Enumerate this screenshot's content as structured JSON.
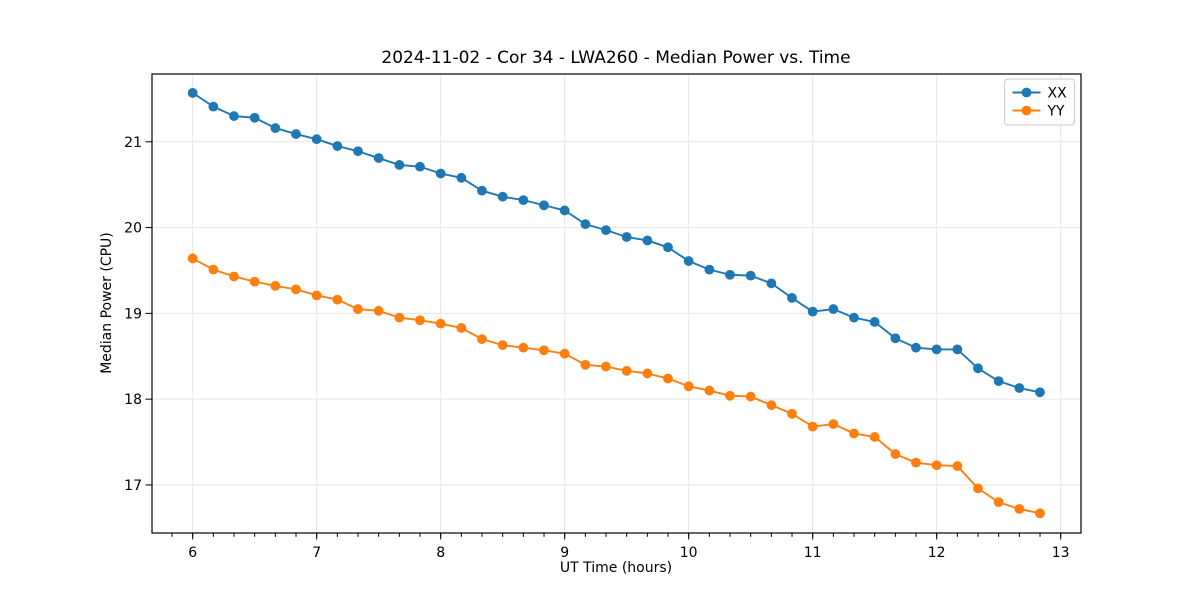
{
  "chart_data": {
    "type": "line",
    "title": "2024-11-02 - Cor 34 - LWA260 - Median Power vs. Time",
    "xlabel": "UT Time (hours)",
    "ylabel": "Median Power (CPU)",
    "xlim": [
      5.672,
      13.164
    ],
    "ylim": [
      16.44,
      21.79
    ],
    "x_ticks": [
      6,
      7,
      8,
      9,
      10,
      11,
      12,
      13
    ],
    "y_ticks": [
      17,
      18,
      19,
      20,
      21
    ],
    "x_minor_step": 0.16667,
    "grid": true,
    "grid_color": "#e6e6e6",
    "spine_color": "#000000",
    "legend_position": "upper right",
    "x": [
      6.0,
      6.167,
      6.333,
      6.5,
      6.667,
      6.833,
      7.0,
      7.167,
      7.333,
      7.5,
      7.667,
      7.833,
      8.0,
      8.167,
      8.333,
      8.5,
      8.667,
      8.833,
      9.0,
      9.167,
      9.333,
      9.5,
      9.667,
      9.833,
      10.0,
      10.167,
      10.333,
      10.5,
      10.667,
      10.833,
      11.0,
      11.167,
      11.333,
      11.5,
      11.667,
      11.833,
      12.0,
      12.167,
      12.333,
      12.5,
      12.667,
      12.833
    ],
    "series": [
      {
        "name": "XX",
        "color": "#1f77b4",
        "values": [
          21.57,
          21.41,
          21.3,
          21.28,
          21.16,
          21.09,
          21.03,
          20.95,
          20.89,
          20.81,
          20.73,
          20.71,
          20.63,
          20.58,
          20.43,
          20.36,
          20.32,
          20.26,
          20.2,
          20.04,
          19.97,
          19.89,
          19.85,
          19.77,
          19.61,
          19.51,
          19.45,
          19.44,
          19.35,
          19.18,
          19.02,
          19.05,
          18.95,
          18.9,
          18.71,
          18.6,
          18.58,
          18.58,
          18.36,
          18.21,
          18.13,
          18.08
        ]
      },
      {
        "name": "YY",
        "color": "#ff7f0e",
        "values": [
          19.64,
          19.51,
          19.43,
          19.37,
          19.32,
          19.28,
          19.21,
          19.16,
          19.05,
          19.03,
          18.95,
          18.92,
          18.88,
          18.83,
          18.7,
          18.63,
          18.6,
          18.57,
          18.53,
          18.4,
          18.38,
          18.33,
          18.3,
          18.24,
          18.15,
          18.1,
          18.04,
          18.03,
          17.93,
          17.83,
          17.68,
          17.71,
          17.6,
          17.56,
          17.36,
          17.26,
          17.23,
          17.22,
          16.96,
          16.8,
          16.72,
          16.67
        ]
      }
    ]
  }
}
